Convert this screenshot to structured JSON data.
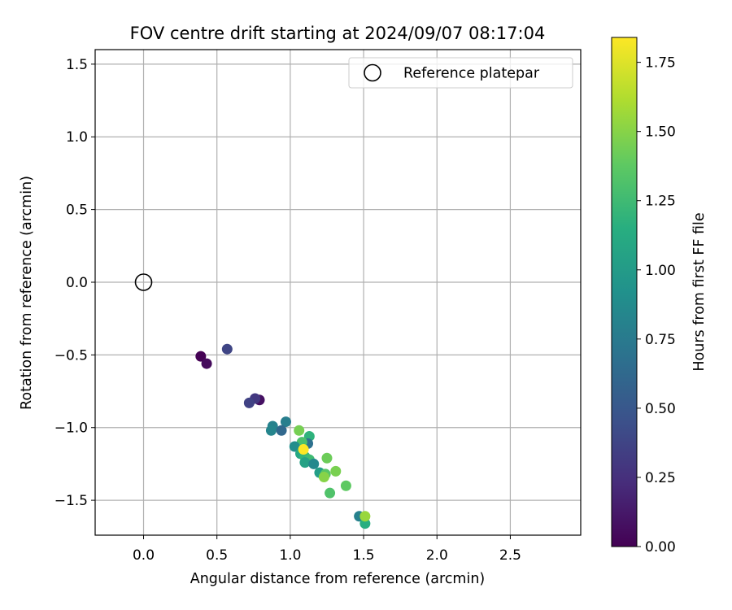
{
  "chart_data": {
    "type": "scatter",
    "title": "FOV centre drift starting at 2024/09/07 08:17:04",
    "xlabel": "Angular distance from reference (arcmin)",
    "ylabel": "Rotation from reference (arcmin)",
    "xlim": [
      -0.33,
      2.98
    ],
    "ylim": [
      -1.74,
      1.6
    ],
    "xticks": [
      "0.0",
      "0.5",
      "1.0",
      "1.5",
      "2.0",
      "2.5"
    ],
    "yticks": [
      "−1.5",
      "−1.0",
      "−0.5",
      "0.0",
      "0.5",
      "1.0",
      "1.5"
    ],
    "grid": true,
    "legend": {
      "placement": "top-right",
      "entries": [
        "Reference platepar"
      ]
    },
    "reference_point": {
      "x": 0.0,
      "y": 0.0
    },
    "colorbar": {
      "label": "Hours from first FF file",
      "range": [
        0.0,
        1.84
      ],
      "ticks": [
        "0.00",
        "0.25",
        "0.50",
        "0.75",
        "1.00",
        "1.25",
        "1.50",
        "1.75"
      ],
      "colormap": "viridis"
    },
    "points": [
      {
        "x": 0.39,
        "y": -0.51,
        "t": 0.0
      },
      {
        "x": 0.43,
        "y": -0.56,
        "t": 0.05
      },
      {
        "x": 0.57,
        "y": -0.46,
        "t": 0.38
      },
      {
        "x": 0.79,
        "y": -0.81,
        "t": 0.08
      },
      {
        "x": 0.76,
        "y": -0.8,
        "t": 0.3
      },
      {
        "x": 0.72,
        "y": -0.83,
        "t": 0.36
      },
      {
        "x": 0.97,
        "y": -0.96,
        "t": 0.78
      },
      {
        "x": 0.88,
        "y": -0.99,
        "t": 0.8
      },
      {
        "x": 0.87,
        "y": -1.02,
        "t": 0.83
      },
      {
        "x": 0.94,
        "y": -1.02,
        "t": 0.62
      },
      {
        "x": 1.06,
        "y": -1.02,
        "t": 1.45
      },
      {
        "x": 1.13,
        "y": -1.06,
        "t": 1.18
      },
      {
        "x": 1.12,
        "y": -1.11,
        "t": 0.68
      },
      {
        "x": 1.08,
        "y": -1.1,
        "t": 1.3
      },
      {
        "x": 1.03,
        "y": -1.13,
        "t": 0.9
      },
      {
        "x": 1.07,
        "y": -1.18,
        "t": 1.1
      },
      {
        "x": 1.1,
        "y": -1.2,
        "t": 1.2
      },
      {
        "x": 1.13,
        "y": -1.22,
        "t": 1.25
      },
      {
        "x": 1.1,
        "y": -1.24,
        "t": 1.05
      },
      {
        "x": 1.16,
        "y": -1.25,
        "t": 0.85
      },
      {
        "x": 1.09,
        "y": -1.15,
        "t": 1.84
      },
      {
        "x": 1.25,
        "y": -1.21,
        "t": 1.42
      },
      {
        "x": 1.2,
        "y": -1.31,
        "t": 1.02
      },
      {
        "x": 1.24,
        "y": -1.32,
        "t": 1.35
      },
      {
        "x": 1.23,
        "y": -1.34,
        "t": 1.5
      },
      {
        "x": 1.31,
        "y": -1.3,
        "t": 1.46
      },
      {
        "x": 1.38,
        "y": -1.4,
        "t": 1.38
      },
      {
        "x": 1.27,
        "y": -1.45,
        "t": 1.32
      },
      {
        "x": 1.47,
        "y": -1.61,
        "t": 0.8
      },
      {
        "x": 1.51,
        "y": -1.66,
        "t": 1.15
      },
      {
        "x": 1.51,
        "y": -1.61,
        "t": 1.55
      }
    ]
  }
}
